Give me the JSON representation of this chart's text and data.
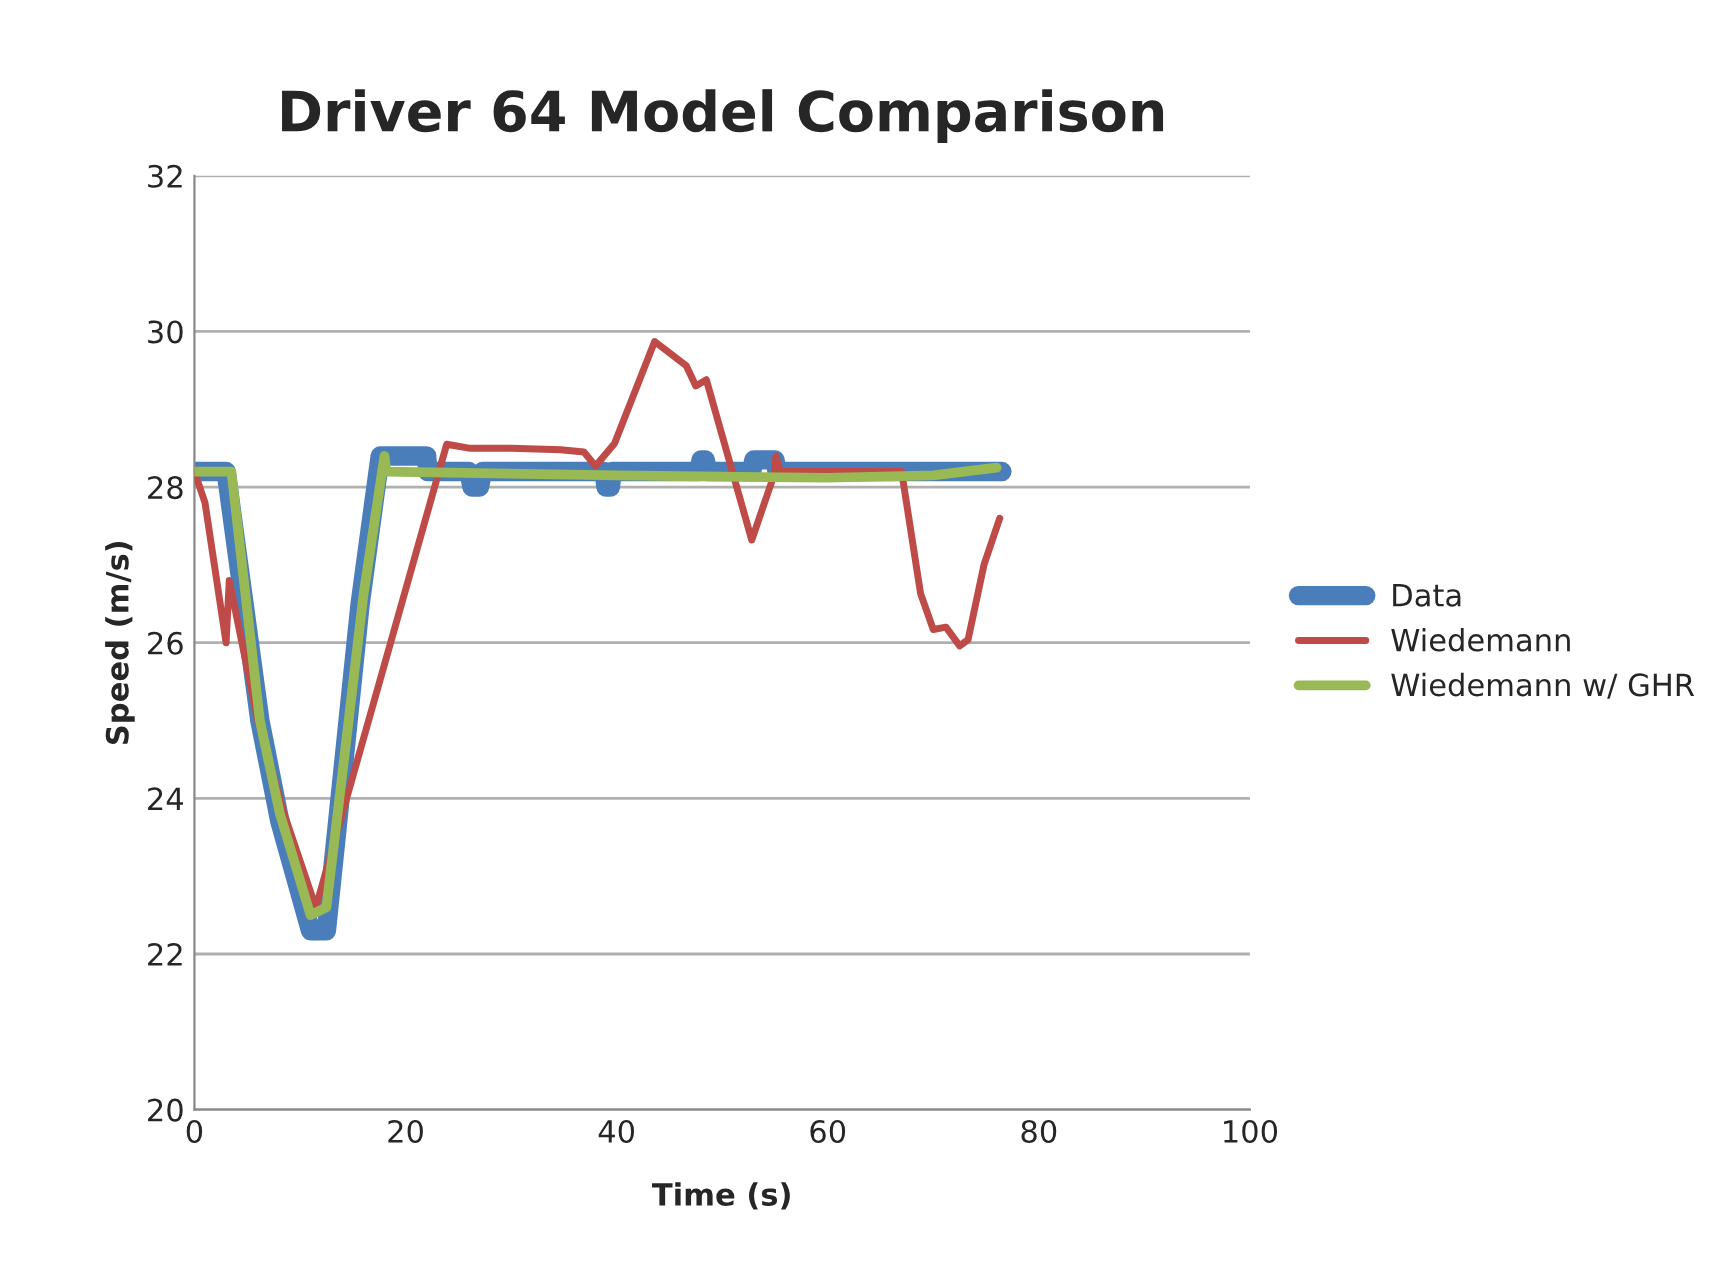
{
  "chart_data": {
    "type": "line",
    "title": "Driver 64 Model Comparison",
    "xlabel": "Time (s)",
    "ylabel": "Speed (m/s)",
    "xlim": [
      0,
      100
    ],
    "xticks": [
      0,
      20,
      40,
      60,
      80,
      100
    ],
    "ylim": [
      20,
      32
    ],
    "yticks": [
      20,
      22,
      24,
      26,
      28,
      30,
      32
    ],
    "grid": "y",
    "legend": "right",
    "line_style": "solid",
    "marker": "none",
    "series": [
      {
        "name": "Data",
        "color": "#4a7ebb",
        "x": [
          0,
          3,
          4.4,
          6.2,
          8.1,
          11,
          12.5,
          13.8,
          15.7,
          17.6,
          22,
          22.1,
          26,
          26.3,
          27,
          27.3,
          38.8,
          39,
          39.4,
          39.6,
          47.8,
          48,
          48.4,
          48.6,
          52.8,
          53,
          55,
          55.2,
          76.5
        ],
        "values": [
          28.2,
          28.2,
          26.8,
          25,
          23.7,
          22.3,
          22.3,
          24,
          26.5,
          28.4,
          28.4,
          28.2,
          28.2,
          28,
          28,
          28.2,
          28.2,
          28,
          28,
          28.2,
          28.2,
          28.35,
          28.35,
          28.2,
          28.2,
          28.35,
          28.35,
          28.2,
          28.2
        ]
      },
      {
        "name": "Wiedemann",
        "color": "#be4b48",
        "x": [
          0,
          1,
          3,
          3.3,
          6,
          8.5,
          11.5,
          23.9,
          26,
          30,
          34.7,
          36.9,
          38,
          39.8,
          43.6,
          46.6,
          47.5,
          48.5,
          52.8,
          54.9,
          55.1,
          55.5,
          67,
          68.8,
          70,
          71.2,
          72.5,
          73.3,
          74.8,
          76.3
        ],
        "values": [
          28.2,
          27.8,
          26,
          26.8,
          25,
          23.8,
          22.6,
          28.55,
          28.5,
          28.5,
          28.48,
          28.45,
          28.27,
          28.56,
          29.87,
          29.56,
          29.3,
          29.38,
          27.32,
          28.15,
          28.4,
          28.2,
          28.2,
          26.63,
          26.17,
          26.2,
          25.96,
          26.04,
          27.0,
          27.6
        ]
      },
      {
        "name": "Wiedemann w/ GHR",
        "color": "#98b954",
        "x": [
          0,
          3.5,
          6.2,
          8.1,
          11,
          12.5,
          14,
          16,
          18,
          18.2,
          40,
          60,
          70,
          76
        ],
        "values": [
          28.2,
          28.2,
          25,
          23.8,
          22.5,
          22.6,
          24.3,
          26.6,
          28.4,
          28.2,
          28.15,
          28.12,
          28.15,
          28.25
        ]
      }
    ]
  }
}
